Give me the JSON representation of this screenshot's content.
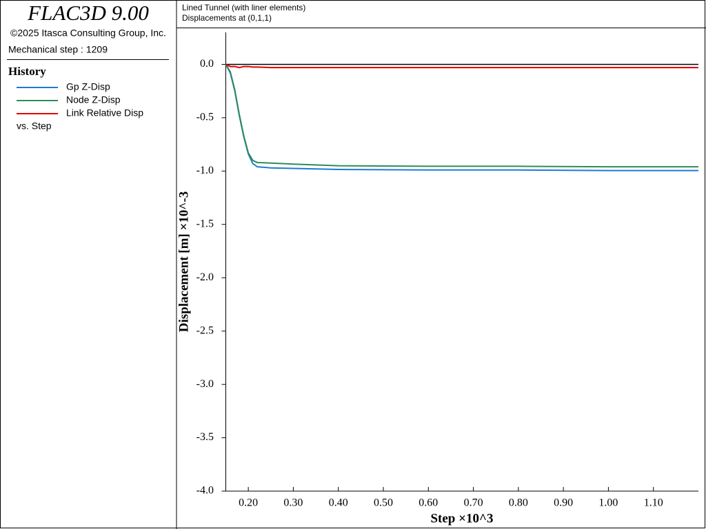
{
  "panel": {
    "product": "FLAC3D 9.00",
    "copyright": "©2025 Itasca Consulting Group, Inc.",
    "step": "Mechanical step : 1209",
    "legend_title": "History",
    "legend_footer": "vs. Step"
  },
  "chart_data": {
    "type": "line",
    "title": "Lined Tunnel (with liner elements)",
    "subtitle": "Displacements at (0,1,1)",
    "x_label": "Step ×10^3",
    "y_label": "Displacement [m] ×10^-3",
    "x": [
      0.15,
      0.16,
      0.17,
      0.18,
      0.19,
      0.2,
      0.21,
      0.22,
      0.25,
      0.3,
      0.4,
      0.6,
      0.8,
      1.0,
      1.2
    ],
    "series": [
      {
        "name": "Gp Z-Disp",
        "color": "#1c7ad6",
        "values": [
          0,
          -0.08,
          -0.25,
          -0.48,
          -0.68,
          -0.84,
          -0.93,
          -0.96,
          -0.97,
          -0.975,
          -0.985,
          -0.99,
          -0.99,
          -0.995,
          -0.995
        ]
      },
      {
        "name": "Node Z-Disp",
        "color": "#2e8b57",
        "values": [
          0,
          -0.07,
          -0.24,
          -0.47,
          -0.67,
          -0.83,
          -0.9,
          -0.92,
          -0.925,
          -0.935,
          -0.95,
          -0.955,
          -0.955,
          -0.96,
          -0.96
        ]
      },
      {
        "name": "Link Relative Disp",
        "color": "#e00000",
        "values": [
          0,
          -0.02,
          -0.02,
          -0.03,
          -0.02,
          -0.02,
          -0.025,
          -0.025,
          -0.03,
          -0.03,
          -0.03,
          -0.03,
          -0.03,
          -0.03,
          -0.03
        ]
      }
    ],
    "xlim": [
      0.15,
      1.2
    ],
    "ylim": [
      -4.0,
      0.3
    ],
    "xticks": [
      {
        "value": 0.2,
        "label": "0.20"
      },
      {
        "value": 0.3,
        "label": "0.30"
      },
      {
        "value": 0.4,
        "label": "0.40"
      },
      {
        "value": 0.5,
        "label": "0.50"
      },
      {
        "value": 0.6,
        "label": "0.60"
      },
      {
        "value": 0.7,
        "label": "0.70"
      },
      {
        "value": 0.8,
        "label": "0.80"
      },
      {
        "value": 0.9,
        "label": "0.90"
      },
      {
        "value": 1.0,
        "label": "1.00"
      },
      {
        "value": 1.1,
        "label": "1.10"
      }
    ],
    "yticks": [
      {
        "value": 0,
        "label": "0.0"
      },
      {
        "value": -0.5,
        "label": "-0.5"
      },
      {
        "value": -1.0,
        "label": "-1.0"
      },
      {
        "value": -1.5,
        "label": "-1.5"
      },
      {
        "value": -2.0,
        "label": "-2.0"
      },
      {
        "value": -2.5,
        "label": "-2.5"
      },
      {
        "value": -3.0,
        "label": "-3.0"
      },
      {
        "value": -3.5,
        "label": "-3.5"
      },
      {
        "value": -4.0,
        "label": "-4.0"
      }
    ],
    "zero_line": true
  }
}
